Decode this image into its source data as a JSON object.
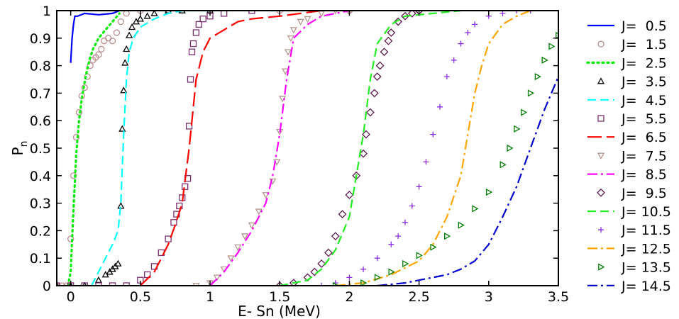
{
  "chart_data": {
    "type": "line",
    "xlabel": "E- Sn (MeV)",
    "ylabel": "P",
    "ylabel_subscript": "n",
    "xlim": [
      -0.1,
      3.5
    ],
    "ylim": [
      0,
      1
    ],
    "x_ticks": [
      {
        "value": 0,
        "label": "0"
      },
      {
        "value": 0.5,
        "label": "0.5"
      },
      {
        "value": 1,
        "label": "1"
      },
      {
        "value": 1.5,
        "label": "1.5"
      },
      {
        "value": 2,
        "label": "2"
      },
      {
        "value": 2.5,
        "label": "2.5"
      },
      {
        "value": 3,
        "label": "3"
      },
      {
        "value": 3.5,
        "label": "3.5"
      }
    ],
    "y_ticks": [
      {
        "value": 0,
        "label": "0"
      },
      {
        "value": 0.1,
        "label": "0.1"
      },
      {
        "value": 0.2,
        "label": "0.2"
      },
      {
        "value": 0.3,
        "label": "0.3"
      },
      {
        "value": 0.4,
        "label": "0.4"
      },
      {
        "value": 0.5,
        "label": "0.5"
      },
      {
        "value": 0.6,
        "label": "0.6"
      },
      {
        "value": 0.7,
        "label": "0.7"
      },
      {
        "value": 0.8,
        "label": "0.8"
      },
      {
        "value": 0.9,
        "label": "0.9"
      },
      {
        "value": 1,
        "label": "1"
      }
    ],
    "grid": false,
    "legend_position": "right",
    "series": [
      {
        "name": "J=  0.5",
        "color": "#0000ff",
        "style": "solid",
        "marker": "none",
        "x": [
          0.0,
          0.01,
          0.02,
          0.03,
          0.05,
          0.1,
          0.2,
          0.3,
          0.35
        ],
        "y": [
          0.81,
          0.9,
          0.95,
          0.98,
          0.98,
          0.99,
          0.985,
          0.99,
          1.0
        ]
      },
      {
        "name": "J=  1.5",
        "color": "#bc8f8f",
        "style": "none",
        "marker": "circle",
        "x": [
          -0.1,
          -0.06,
          -0.03,
          0.0,
          0.02,
          0.04,
          0.06,
          0.08,
          0.1,
          0.12,
          0.14,
          0.16,
          0.18,
          0.2,
          0.22,
          0.24,
          0.27,
          0.3,
          0.33,
          0.36,
          0.4,
          0.5,
          0.7,
          1.0,
          1.5,
          2.0,
          2.5
        ],
        "y": [
          0,
          0,
          0,
          0.17,
          0.4,
          0.54,
          0.63,
          0.69,
          0.72,
          0.76,
          0.8,
          0.82,
          0.83,
          0.84,
          0.86,
          0.89,
          0.9,
          0.89,
          0.92,
          0.96,
          0.99,
          1.0,
          1.0,
          1.0,
          1.0,
          1.0,
          1.0
        ]
      },
      {
        "name": "J=  2.5",
        "color": "#00ee00",
        "style": "dotted",
        "marker": "none",
        "x": [
          -0.02,
          0.0,
          0.02,
          0.04,
          0.06,
          0.08,
          0.1,
          0.12,
          0.14,
          0.16,
          0.18,
          0.2,
          0.25,
          0.3,
          0.35
        ],
        "y": [
          0,
          0.05,
          0.28,
          0.48,
          0.6,
          0.68,
          0.74,
          0.79,
          0.83,
          0.86,
          0.88,
          0.9,
          0.93,
          0.96,
          0.99
        ]
      },
      {
        "name": "J=  3.5",
        "color": "#000000",
        "style": "none",
        "marker": "triangle",
        "x": [
          -0.1,
          0.0,
          0.1,
          0.2,
          0.25,
          0.28,
          0.3,
          0.32,
          0.34,
          0.36,
          0.37,
          0.38,
          0.39,
          0.4,
          0.42,
          0.44,
          0.47,
          0.5,
          0.55,
          0.6,
          0.7,
          0.8,
          1.0
        ],
        "y": [
          0,
          0,
          0,
          0.02,
          0.04,
          0.05,
          0.06,
          0.07,
          0.08,
          0.29,
          0.57,
          0.71,
          0.81,
          0.86,
          0.91,
          0.94,
          0.96,
          0.97,
          0.98,
          0.99,
          1.0,
          1.0,
          1.0
        ]
      },
      {
        "name": "J=  4.5",
        "color": "#00ffff",
        "style": "dashed",
        "marker": "none",
        "x": [
          0.15,
          0.2,
          0.25,
          0.3,
          0.34,
          0.36,
          0.38,
          0.4,
          0.42,
          0.45,
          0.5,
          0.6,
          0.7,
          0.8,
          1.0
        ],
        "y": [
          0,
          0.05,
          0.1,
          0.15,
          0.2,
          0.3,
          0.55,
          0.75,
          0.85,
          0.9,
          0.94,
          0.97,
          0.99,
          1.0,
          1.0
        ]
      },
      {
        "name": "J=  5.5",
        "color": "#7b2d6e",
        "style": "none",
        "marker": "square",
        "x": [
          -0.1,
          0.0,
          0.1,
          0.2,
          0.3,
          0.4,
          0.5,
          0.55,
          0.6,
          0.65,
          0.7,
          0.74,
          0.76,
          0.78,
          0.8,
          0.82,
          0.84,
          0.85,
          0.86,
          0.87,
          0.88,
          0.9,
          0.92,
          0.95,
          1.0,
          1.1,
          1.3
        ],
        "y": [
          0,
          0,
          0,
          0,
          0,
          0,
          0.02,
          0.04,
          0.07,
          0.12,
          0.17,
          0.23,
          0.26,
          0.29,
          0.32,
          0.36,
          0.39,
          0.58,
          0.75,
          0.85,
          0.88,
          0.92,
          0.95,
          0.97,
          0.98,
          0.99,
          1.0
        ]
      },
      {
        "name": "J=  6.5",
        "color": "#ff0000",
        "style": "longdash",
        "marker": "none",
        "x": [
          0.5,
          0.6,
          0.7,
          0.75,
          0.8,
          0.85,
          0.88,
          0.9,
          0.95,
          1.0,
          1.1,
          1.2,
          1.3,
          1.5,
          1.8
        ],
        "y": [
          0,
          0.05,
          0.15,
          0.22,
          0.3,
          0.5,
          0.65,
          0.75,
          0.85,
          0.9,
          0.93,
          0.96,
          0.97,
          0.98,
          1.0
        ]
      },
      {
        "name": "J=  7.5",
        "color": "#b5958e",
        "style": "none",
        "marker": "triangle-down",
        "x": [
          0.9,
          1.0,
          1.05,
          1.1,
          1.15,
          1.2,
          1.25,
          1.3,
          1.35,
          1.4,
          1.45,
          1.48,
          1.5,
          1.52,
          1.54,
          1.56,
          1.58,
          1.6,
          1.65,
          1.7,
          1.8,
          1.9,
          2.0
        ],
        "y": [
          0,
          0.01,
          0.03,
          0.06,
          0.1,
          0.14,
          0.18,
          0.22,
          0.27,
          0.33,
          0.38,
          0.45,
          0.56,
          0.68,
          0.78,
          0.85,
          0.9,
          0.93,
          0.96,
          0.97,
          0.99,
          1.0,
          1.0
        ]
      },
      {
        "name": "J=  8.5",
        "color": "#ff00ff",
        "style": "dashdot",
        "marker": "none",
        "x": [
          1.0,
          1.1,
          1.2,
          1.3,
          1.4,
          1.45,
          1.5,
          1.55,
          1.6,
          1.7,
          1.8,
          1.9,
          2.0
        ],
        "y": [
          0,
          0.05,
          0.12,
          0.2,
          0.3,
          0.4,
          0.55,
          0.75,
          0.9,
          0.95,
          0.98,
          0.99,
          1.0
        ]
      },
      {
        "name": "J=  9.5",
        "color": "#5e1a4f",
        "style": "none",
        "marker": "diamond",
        "x": [
          1.5,
          1.6,
          1.7,
          1.75,
          1.8,
          1.85,
          1.9,
          1.95,
          2.0,
          2.05,
          2.1,
          2.12,
          2.15,
          2.18,
          2.2,
          2.22,
          2.25,
          2.28,
          2.3,
          2.35,
          2.4,
          2.45,
          2.5
        ],
        "y": [
          0,
          0.01,
          0.03,
          0.05,
          0.08,
          0.12,
          0.18,
          0.26,
          0.33,
          0.4,
          0.48,
          0.55,
          0.63,
          0.7,
          0.76,
          0.8,
          0.85,
          0.89,
          0.92,
          0.96,
          0.98,
          0.99,
          1.0
        ]
      },
      {
        "name": "J= 10.5",
        "color": "#22ee22",
        "style": "dashed",
        "marker": "none",
        "x": [
          1.5,
          1.7,
          1.8,
          1.9,
          2.0,
          2.05,
          2.1,
          2.15,
          2.2,
          2.3,
          2.4,
          2.6,
          2.8
        ],
        "y": [
          0,
          0.02,
          0.06,
          0.13,
          0.25,
          0.4,
          0.55,
          0.75,
          0.88,
          0.95,
          0.98,
          0.99,
          1.0
        ]
      },
      {
        "name": "J= 11.5",
        "color": "#8a2be2",
        "style": "none",
        "marker": "plus",
        "x": [
          1.8,
          1.9,
          2.0,
          2.1,
          2.2,
          2.3,
          2.35,
          2.4,
          2.45,
          2.5,
          2.55,
          2.6,
          2.65,
          2.7,
          2.75,
          2.8,
          2.85,
          2.9,
          3.0,
          3.1,
          3.2,
          3.3
        ],
        "y": [
          0,
          0.01,
          0.03,
          0.06,
          0.1,
          0.15,
          0.18,
          0.23,
          0.29,
          0.36,
          0.45,
          0.55,
          0.65,
          0.76,
          0.82,
          0.88,
          0.92,
          0.95,
          0.98,
          0.99,
          1.0,
          1.0
        ]
      },
      {
        "name": "J= 12.5",
        "color": "#ffa500",
        "style": "dashdot",
        "marker": "none",
        "x": [
          1.9,
          2.1,
          2.3,
          2.5,
          2.6,
          2.7,
          2.8,
          2.85,
          2.9,
          2.95,
          3.0,
          3.1,
          3.2,
          3.3
        ],
        "y": [
          0,
          0.01,
          0.04,
          0.09,
          0.15,
          0.25,
          0.4,
          0.55,
          0.7,
          0.8,
          0.88,
          0.95,
          0.98,
          1.0
        ]
      },
      {
        "name": "J= 13.5",
        "color": "#008000",
        "style": "none",
        "marker": "triangle-right",
        "x": [
          1.9,
          2.1,
          2.2,
          2.3,
          2.4,
          2.5,
          2.6,
          2.7,
          2.8,
          2.9,
          3.0,
          3.1,
          3.15,
          3.2,
          3.25,
          3.3,
          3.35,
          3.4,
          3.45,
          3.5
        ],
        "y": [
          0,
          0.01,
          0.03,
          0.05,
          0.08,
          0.11,
          0.14,
          0.18,
          0.22,
          0.28,
          0.34,
          0.44,
          0.5,
          0.57,
          0.63,
          0.7,
          0.76,
          0.82,
          0.87,
          0.91
        ]
      },
      {
        "name": "J= 14.5",
        "color": "#0000cd",
        "style": "dashdot",
        "marker": "none",
        "x": [
          2.2,
          2.4,
          2.5,
          2.6,
          2.7,
          2.8,
          2.9,
          3.0,
          3.1,
          3.2,
          3.3,
          3.4,
          3.45,
          3.5
        ],
        "y": [
          0,
          0.01,
          0.02,
          0.03,
          0.04,
          0.06,
          0.09,
          0.15,
          0.25,
          0.36,
          0.5,
          0.64,
          0.7,
          0.76
        ]
      }
    ]
  }
}
